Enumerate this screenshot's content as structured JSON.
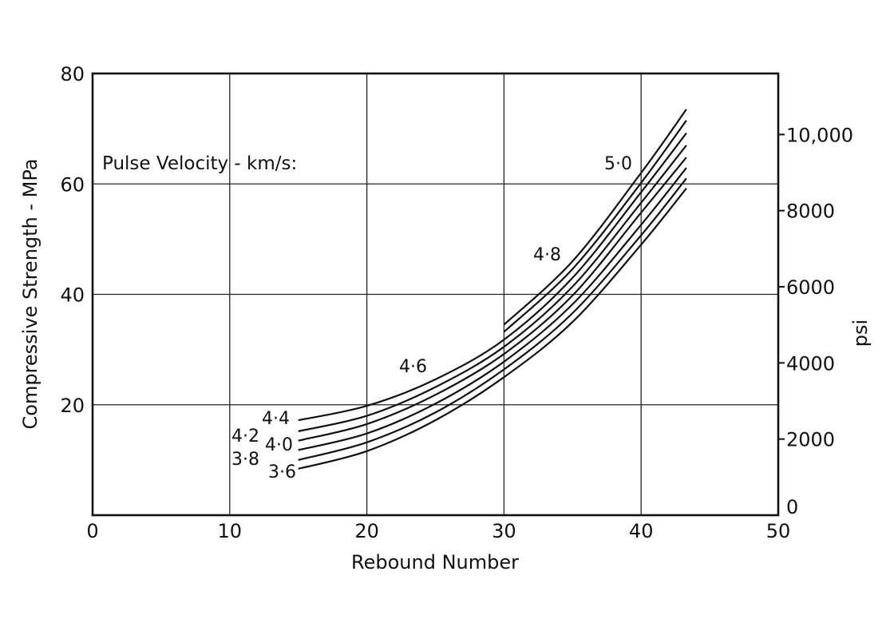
{
  "chart_data": {
    "type": "line",
    "xlabel": "Rebound Number",
    "ylabel": "Compressive Strength - MPa",
    "y2label": "psi",
    "annotation": "Pulse Velocity - km/s:",
    "xlim": [
      0,
      50
    ],
    "ylim": [
      0,
      80
    ],
    "y2lim": [
      0,
      11603
    ],
    "grid": true,
    "x_ticks": [
      "0",
      "10",
      "20",
      "30",
      "40",
      "50"
    ],
    "y_ticks": [
      "0",
      "20",
      "40",
      "60",
      "80"
    ],
    "y2_ticks": [
      "0",
      "2000",
      "4000",
      "6000",
      "8000",
      "10,000"
    ],
    "y2_tick_values": [
      0,
      2000,
      4000,
      6000,
      8000,
      10000
    ],
    "series": [
      {
        "name": "5·0",
        "x": [
          30,
          35,
          40,
          43.3
        ],
        "y": [
          34.5,
          46.0,
          62.0,
          73.5
        ]
      },
      {
        "name": "4·8",
        "x": [
          30,
          35,
          40,
          43.3
        ],
        "y": [
          33.2,
          44.6,
          60.2,
          71.5
        ]
      },
      {
        "name": "4·6",
        "x": [
          15,
          20,
          25,
          30,
          35,
          40,
          43.3
        ],
        "y": [
          17.2,
          19.8,
          24.6,
          31.8,
          43.0,
          58.5,
          69.2
        ]
      },
      {
        "name": "4·4",
        "x": [
          15,
          20,
          25,
          30,
          35,
          40,
          43.3
        ],
        "y": [
          15.2,
          18.0,
          23.2,
          30.5,
          41.4,
          56.6,
          67.0
        ]
      },
      {
        "name": "4·2",
        "x": [
          15,
          20,
          25,
          30,
          35,
          40,
          43.3
        ],
        "y": [
          13.5,
          16.5,
          21.8,
          29.2,
          39.8,
          54.8,
          64.8
        ]
      },
      {
        "name": "4·0",
        "x": [
          15,
          20,
          25,
          30,
          35,
          40,
          43.3
        ],
        "y": [
          11.8,
          14.8,
          20.2,
          27.8,
          38.2,
          52.6,
          62.9
        ]
      },
      {
        "name": "3·8",
        "x": [
          15,
          20,
          25,
          30,
          35,
          40,
          43.3
        ],
        "y": [
          10.0,
          13.2,
          18.6,
          26.4,
          36.6,
          50.7,
          61.0
        ]
      },
      {
        "name": "3·6",
        "x": [
          15,
          20,
          25,
          30,
          35,
          40,
          43.3
        ],
        "y": [
          8.4,
          11.6,
          17.2,
          25.0,
          35.0,
          49.0,
          59.2
        ]
      }
    ]
  }
}
